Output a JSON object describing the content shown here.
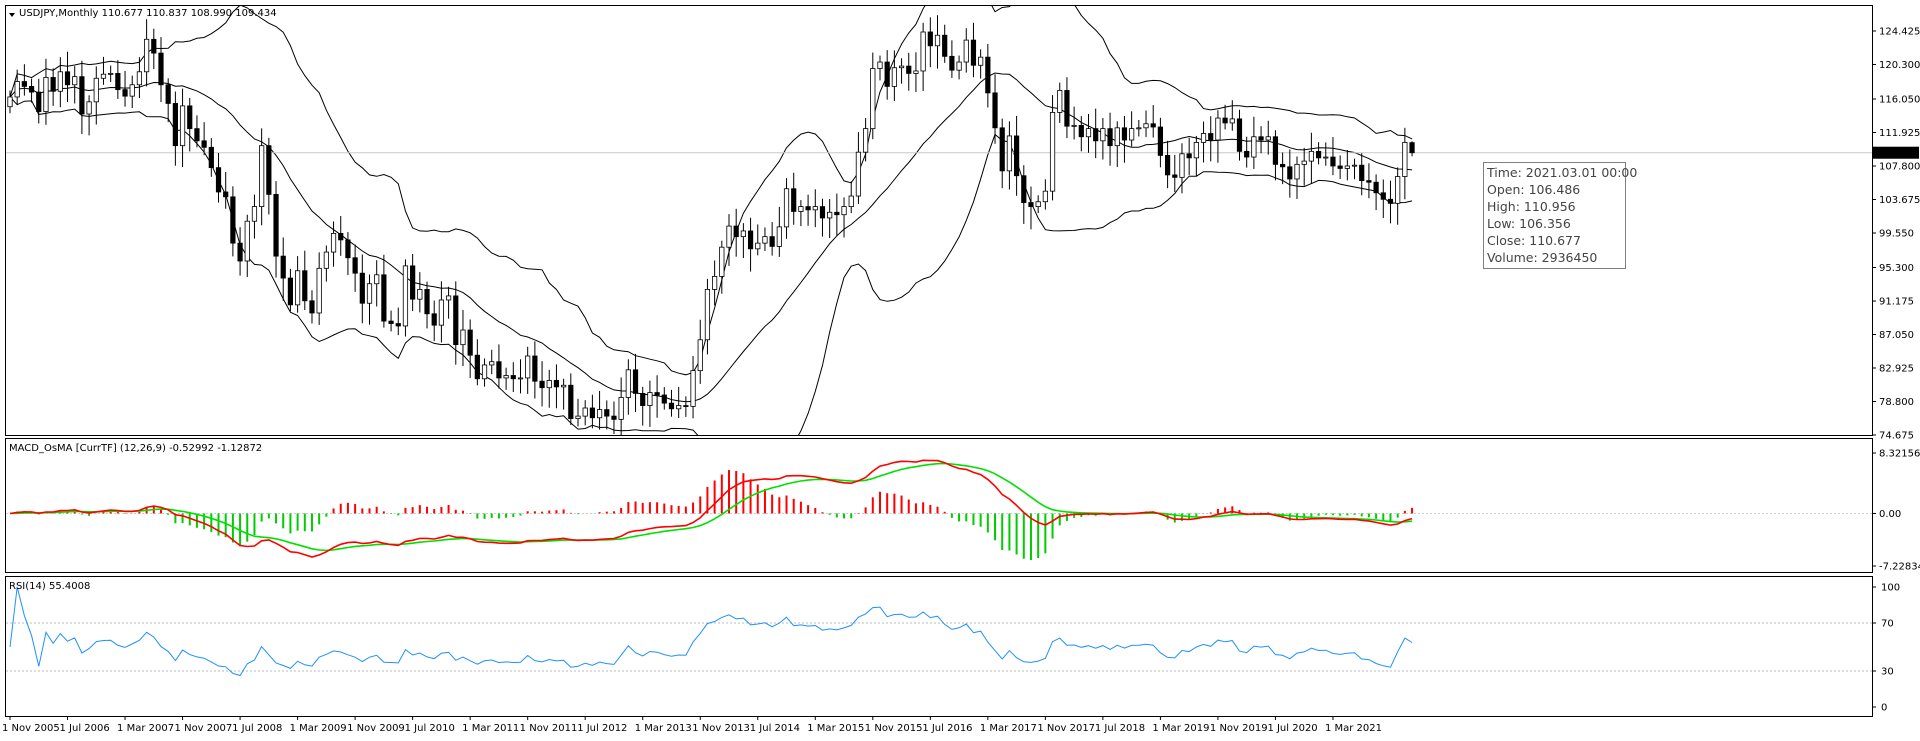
{
  "chart_data": [
    {
      "id": "price",
      "type": "candlestick",
      "title": "USDJPY,Monthly  110.677 110.837 108.990 109.434",
      "ylim": [
        74.675,
        127.5
      ],
      "y_ticks": [
        "124.425",
        "120.300",
        "116.050",
        "111.925",
        "107.800",
        "103.675",
        "99.550",
        "95.300",
        "91.175",
        "87.050",
        "82.925",
        "78.800",
        "74.675"
      ],
      "last_price": "109.434",
      "colors": {
        "candle": "#000000",
        "band": "#000000",
        "price_line": "#c8c8c8"
      },
      "close_series": [
        116.3,
        118.2,
        117.6,
        116.9,
        114.5,
        118.7,
        117.0,
        119.4,
        117.8,
        118.8,
        114.2,
        115.7,
        118.6,
        119.1,
        119.2,
        117.2,
        116.4,
        117.8,
        119.4,
        123.4,
        121.7,
        117.8,
        115.5,
        110.3,
        115.2,
        112.4,
        110.9,
        110.1,
        107.6,
        104.6,
        104.0,
        98.3,
        96.1,
        101.0,
        102.8,
        110.3,
        104.3,
        96.7,
        94.0,
        90.7,
        94.9,
        91.2,
        89.7,
        95.2,
        97.2,
        99.5,
        98.7,
        96.5,
        94.6,
        90.9,
        93.3,
        94.4,
        88.7,
        88.4,
        88.1,
        95.5,
        91.4,
        92.6,
        89.6,
        88.2,
        91.3,
        91.8,
        85.8,
        87.6,
        84.5,
        81.6,
        83.3,
        83.7,
        81.7,
        82.0,
        81.6,
        81.7,
        84.4,
        81.3,
        80.5,
        81.4,
        80.6,
        80.8,
        76.7,
        77.0,
        78.0,
        76.8,
        77.8,
        77.0,
        76.6,
        79.3,
        82.7,
        79.8,
        78.3,
        79.9,
        79.6,
        78.6,
        77.9,
        78.3,
        78.2,
        82.6,
        86.4,
        92.6,
        94.2,
        97.8,
        100.4,
        99.1,
        99.8,
        97.6,
        98.3,
        99.1,
        97.9,
        100.3,
        105.0,
        102.2,
        102.8,
        102.4,
        102.8,
        101.4,
        102.1,
        101.8,
        102.8,
        104.1,
        109.5,
        112.4,
        119.8,
        120.6,
        117.6,
        119.9,
        120.1,
        119.2,
        119.5,
        124.3,
        122.6,
        123.9,
        121.3,
        119.6,
        120.6,
        123.3,
        120.2,
        121.2,
        116.8,
        112.5,
        107.2,
        111.5,
        106.6,
        103.3,
        102.8,
        103.4,
        104.7,
        114.4,
        117.1,
        112.7,
        112.8,
        111.4,
        112.4,
        110.9,
        112.4,
        110.3,
        112.5,
        111.0,
        112.4,
        112.5,
        113.0,
        112.6,
        109.1,
        106.7,
        106.4,
        109.3,
        108.8,
        110.7,
        111.8,
        111.0,
        113.7,
        113.1,
        113.6,
        109.6,
        108.9,
        111.4,
        111.0,
        111.4,
        108.0,
        107.7,
        106.2,
        108.0,
        108.4,
        109.6,
        108.8,
        108.9,
        107.8,
        107.5,
        107.8,
        107.9,
        106.0,
        105.8,
        104.5,
        103.7,
        103.2,
        106.5,
        110.7,
        109.4
      ]
    },
    {
      "id": "macd",
      "type": "histogram+lines",
      "title": "MACD_OsMA [CurrTF] (12,26,9) -0.52992 -1.12872",
      "ylim": [
        -7.22834,
        8.32156
      ],
      "y_ticks": [
        "8.32156",
        "0.00",
        "-7.22834"
      ],
      "colors": {
        "positive": "#ff0000",
        "negative": "#00cc00",
        "macd_line": "#ff0000",
        "signal_line": "#00e000"
      }
    },
    {
      "id": "rsi",
      "type": "line",
      "title": "RSI(14) 55.4008",
      "ylim": [
        0,
        100
      ],
      "y_ticks": [
        "100",
        "70",
        "30",
        "0"
      ],
      "levels": [
        70,
        30
      ],
      "colors": {
        "line": "#1e90ff",
        "level": "#bbbbbb"
      }
    }
  ],
  "x_axis": {
    "labels": [
      "1 Nov 2005",
      "1 Jul 2006",
      "1 Mar 2007",
      "1 Nov 2007",
      "1 Jul 2008",
      "1 Mar 2009",
      "1 Nov 2009",
      "1 Jul 2010",
      "1 Mar 2011",
      "1 Nov 2011",
      "1 Jul 2012",
      "1 Mar 2013",
      "1 Nov 2013",
      "1 Jul 2014",
      "1 Mar 2015",
      "1 Nov 2015",
      "1 Jul 2016",
      "1 Mar 2017",
      "1 Nov 2017",
      "1 Jul 2018",
      "1 Mar 2019",
      "1 Nov 2019",
      "1 Jul 2020",
      "1 Mar 2021"
    ]
  },
  "tooltip": {
    "time": "Time: 2021.03.01 00:00",
    "open": "Open: 106.486",
    "high": "High: 110.956",
    "low": "Low:  106.356",
    "close": "Close: 110.677",
    "volume": "Volume: 2936450"
  }
}
